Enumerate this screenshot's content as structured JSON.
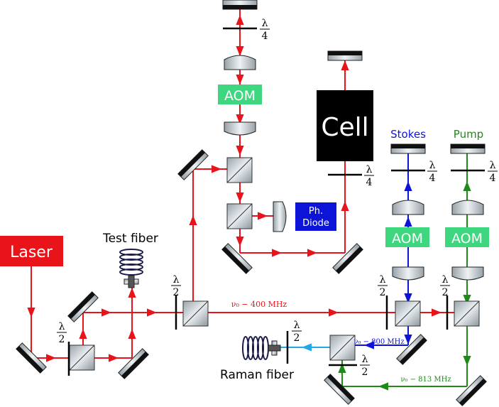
{
  "labels": {
    "laser": "Laser",
    "cell": "Cell",
    "aom": "AOM",
    "photodiode_line1": "Ph.",
    "photodiode_line2": "Diode",
    "stokes": "Stokes",
    "pump": "Pump",
    "test_fiber": "Test fiber",
    "raman_fiber": "Raman fiber",
    "freq_main": "ν₀ − 400 MHz",
    "freq_stokes": "ν₀ − 800 MHz",
    "freq_pump": "ν₀ − 813 MHz",
    "half_wave_num": "λ",
    "half_wave_den": "2",
    "quarter_wave_num": "λ",
    "quarter_wave_den": "4"
  },
  "colors": {
    "main_beam": "#e8141a",
    "stokes_beam": "#0d14d8",
    "pump_beam": "#1f8a17",
    "output_beam": "#22a8e6",
    "laser_box": "#e8141a",
    "aom_box": "#3ed67e",
    "photodiode_box": "#0d14d8",
    "cell_box": "#000000",
    "fiber_coil": "#1b1b4b"
  }
}
